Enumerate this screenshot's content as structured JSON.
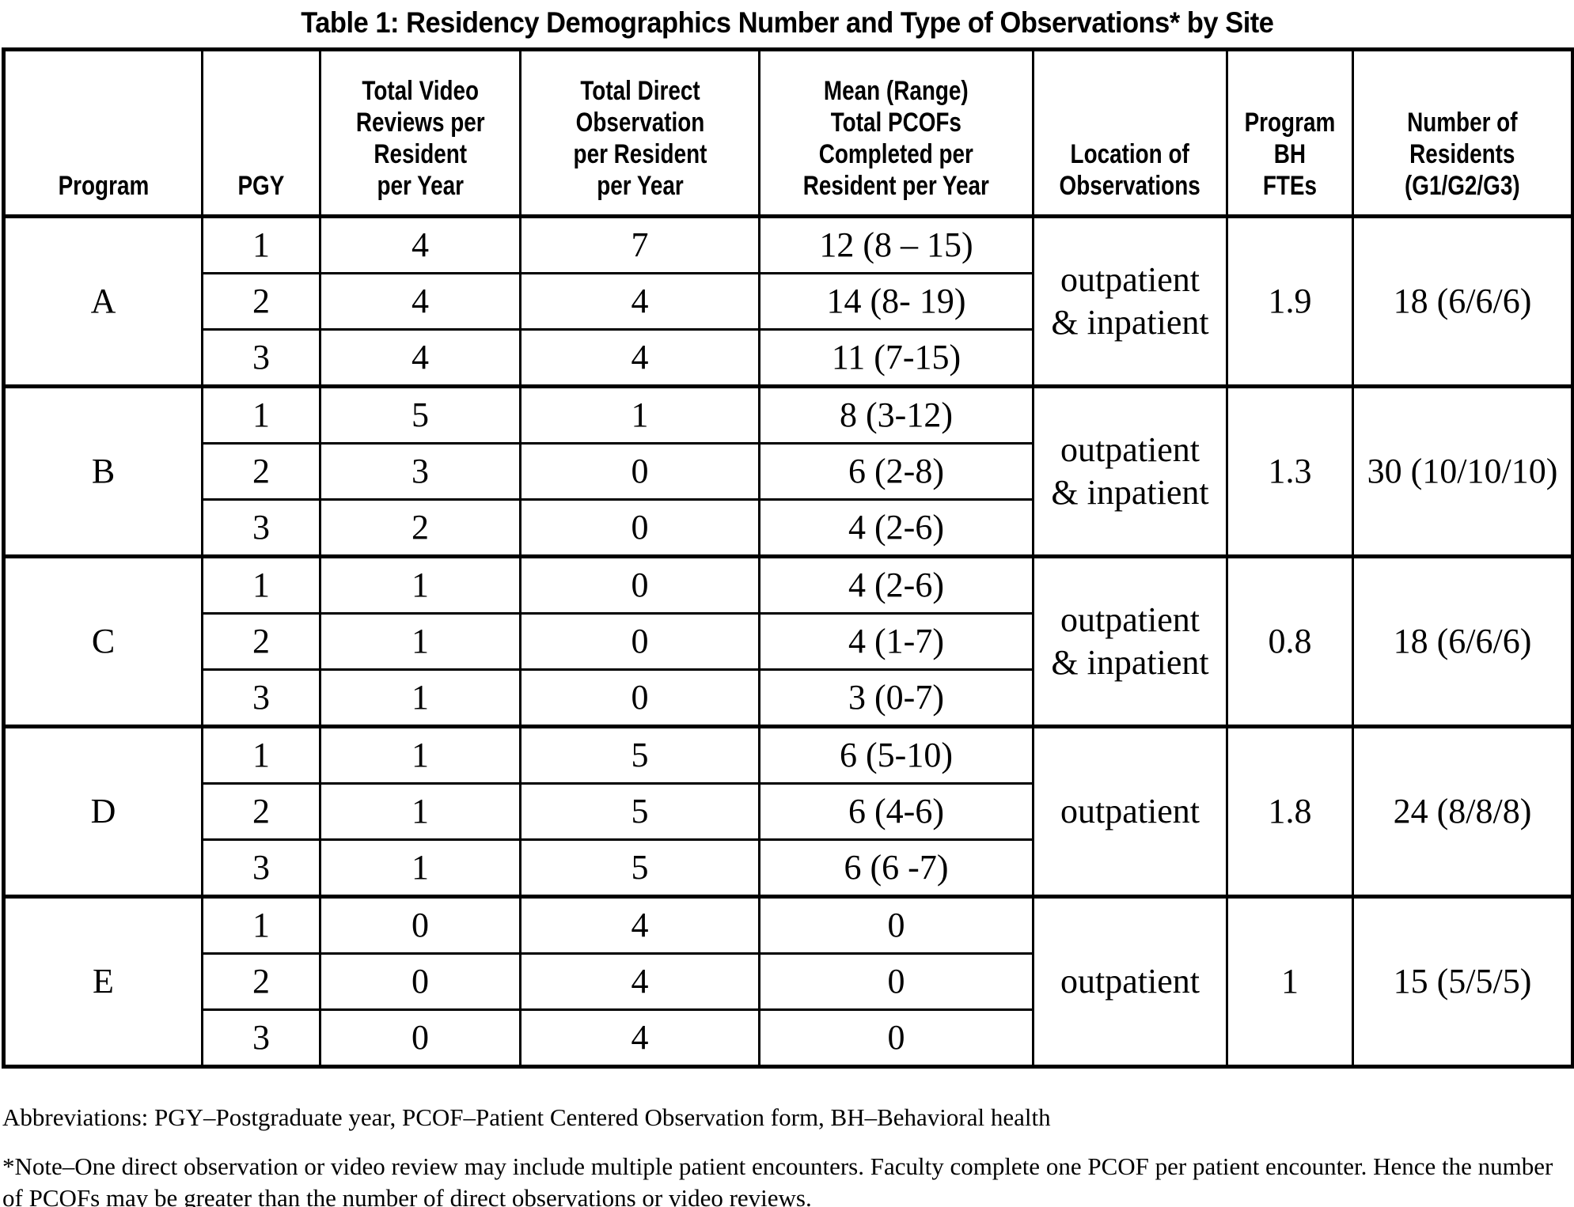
{
  "title": "Table 1: Residency Demographics Number and Type of Observations* by Site",
  "table": {
    "headers": [
      "Program",
      "PGY",
      "Total Video\nReviews per\nResident\nper Year",
      "Total Direct\nObservation\nper Resident\nper Year",
      "Mean (Range)\nTotal PCOFs\nCompleted per\nResident per Year",
      "Location of\nObservations",
      "Program\nBH\nFTEs",
      "Number of\nResidents\n(G1/G2/G3)"
    ],
    "groups": [
      {
        "program": "A",
        "location": "outpatient\n& inpatient",
        "bh_ftes": "1.9",
        "residents": "18 (6/6/6)",
        "rows": [
          {
            "pgy": "1",
            "video_reviews": "4",
            "direct_observations": "7",
            "pcofs_mean_range": "12 (8 – 15)"
          },
          {
            "pgy": "2",
            "video_reviews": "4",
            "direct_observations": "4",
            "pcofs_mean_range": "14 (8- 19)"
          },
          {
            "pgy": "3",
            "video_reviews": "4",
            "direct_observations": "4",
            "pcofs_mean_range": "11 (7-15)"
          }
        ]
      },
      {
        "program": "B",
        "location": "outpatient\n& inpatient",
        "bh_ftes": "1.3",
        "residents": "30 (10/10/10)",
        "rows": [
          {
            "pgy": "1",
            "video_reviews": "5",
            "direct_observations": "1",
            "pcofs_mean_range": "8 (3-12)"
          },
          {
            "pgy": "2",
            "video_reviews": "3",
            "direct_observations": "0",
            "pcofs_mean_range": "6 (2-8)"
          },
          {
            "pgy": "3",
            "video_reviews": "2",
            "direct_observations": "0",
            "pcofs_mean_range": "4 (2-6)"
          }
        ]
      },
      {
        "program": "C",
        "location": "outpatient\n& inpatient",
        "bh_ftes": "0.8",
        "residents": "18 (6/6/6)",
        "rows": [
          {
            "pgy": "1",
            "video_reviews": "1",
            "direct_observations": "0",
            "pcofs_mean_range": "4 (2-6)"
          },
          {
            "pgy": "2",
            "video_reviews": "1",
            "direct_observations": "0",
            "pcofs_mean_range": "4 (1-7)"
          },
          {
            "pgy": "3",
            "video_reviews": "1",
            "direct_observations": "0",
            "pcofs_mean_range": "3 (0-7)"
          }
        ]
      },
      {
        "program": "D",
        "location": "outpatient",
        "bh_ftes": "1.8",
        "residents": "24 (8/8/8)",
        "rows": [
          {
            "pgy": "1",
            "video_reviews": "1",
            "direct_observations": "5",
            "pcofs_mean_range": "6 (5-10)"
          },
          {
            "pgy": "2",
            "video_reviews": "1",
            "direct_observations": "5",
            "pcofs_mean_range": "6 (4-6)"
          },
          {
            "pgy": "3",
            "video_reviews": "1",
            "direct_observations": "5",
            "pcofs_mean_range": "6 (6 -7)"
          }
        ]
      },
      {
        "program": "E",
        "location": "outpatient",
        "bh_ftes": "1",
        "residents": "15 (5/5/5)",
        "rows": [
          {
            "pgy": "1",
            "video_reviews": "0",
            "direct_observations": "4",
            "pcofs_mean_range": "0"
          },
          {
            "pgy": "2",
            "video_reviews": "0",
            "direct_observations": "4",
            "pcofs_mean_range": "0"
          },
          {
            "pgy": "3",
            "video_reviews": "0",
            "direct_observations": "4",
            "pcofs_mean_range": "0"
          }
        ]
      }
    ]
  },
  "footer": {
    "abbreviations": "Abbreviations: PGY–Postgraduate year, PCOF–Patient Centered Observation form, BH–Behavioral health",
    "note": "*Note–One direct observation or video review may include multiple patient encounters. Faculty complete one PCOF per patient encounter. Hence the number of PCOFs may be greater than the number of direct observations or video reviews."
  }
}
